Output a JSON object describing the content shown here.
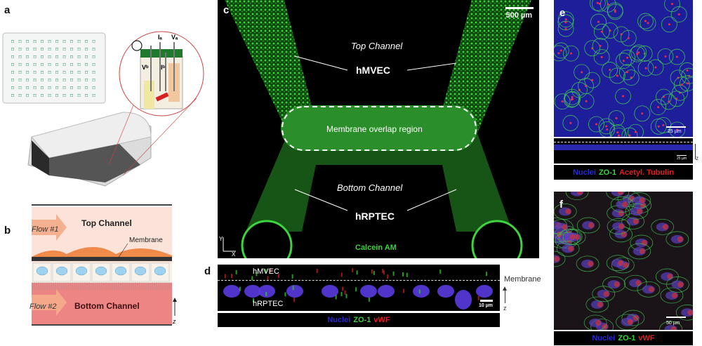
{
  "panels": {
    "a": {
      "label": "a",
      "electrodes": [
        "Iₐ",
        "Vₐ",
        "Vᵇ",
        "Iᵇ"
      ]
    },
    "b": {
      "label": "b",
      "top_channel": "Top Channel",
      "bottom_channel": "Bottom Channel",
      "flow1": "Flow #1",
      "flow2": "Flow #2",
      "membrane": "Membrane",
      "axis": "z"
    },
    "c": {
      "label": "c",
      "scale_bar": "500 µm",
      "top_channel": "Top Channel",
      "top_cells": "hMVEC",
      "overlap": "Membrane overlap region",
      "bottom_channel": "Bottom Channel",
      "bottom_cells": "hRPTEC",
      "stain": "Calcein AM",
      "axis_y": "Y",
      "axis_x": "X"
    },
    "d": {
      "label": "d",
      "top_cells": "hMVEC",
      "bottom_cells": "hRPTEC",
      "membrane": "Membrane",
      "scale_bar": "10 µm",
      "axis": "z",
      "legend": [
        "Nuclei",
        "ZO-1",
        "vWF"
      ]
    },
    "e": {
      "label": "e",
      "scale_bar": "25 µm",
      "scale_bar_xz": "25 µm",
      "axis": "z",
      "legend": [
        "Nuclei",
        "ZO-1",
        "Acetyl. Tubulin"
      ]
    },
    "f": {
      "label": "f",
      "scale_bar": "50 µm",
      "legend": [
        "Nuclei",
        "ZO-1",
        "vWF"
      ]
    }
  },
  "colors": {
    "nuclei": "#2a2ad8",
    "zo1": "#3ad43a",
    "vwf": "#e02020",
    "calcein": "#2ec82e"
  }
}
